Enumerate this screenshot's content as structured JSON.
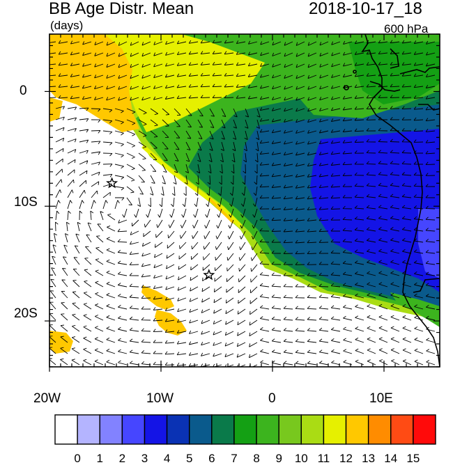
{
  "header": {
    "title": "BB Age Distr. Mean",
    "units": "(days)",
    "datetime": "2018-10-17_18",
    "level": "600 hPa"
  },
  "axes": {
    "x_ticks": [
      "20W",
      "10W",
      "0",
      "10E"
    ],
    "y_ticks": [
      "0",
      "10S",
      "20S"
    ]
  },
  "map_extent": {
    "lon": [
      -20,
      15
    ],
    "lat": [
      -24,
      5
    ]
  },
  "markers": [
    {
      "name": "star",
      "lon": -14.4,
      "lat": -8.0
    },
    {
      "name": "star",
      "lon": -5.7,
      "lat": -16.0
    }
  ],
  "colorbar": {
    "labels": [
      "0",
      "1",
      "2",
      "3",
      "4",
      "5",
      "6",
      "7",
      "8",
      "9",
      "10",
      "11",
      "12",
      "13",
      "14",
      "15"
    ],
    "colors": [
      "#ffffff",
      "#b4b4ff",
      "#8282ff",
      "#4646ff",
      "#1414e6",
      "#0a32b4",
      "#0a5a8c",
      "#0a7a4a",
      "#14a014",
      "#3cb41e",
      "#78c81e",
      "#aadc14",
      "#e6f000",
      "#ffc800",
      "#ff8c00",
      "#ff4b14",
      "#ff0a0a"
    ]
  },
  "colors": {
    "land_outline": "#000000",
    "wind_barbs": "#000000"
  }
}
